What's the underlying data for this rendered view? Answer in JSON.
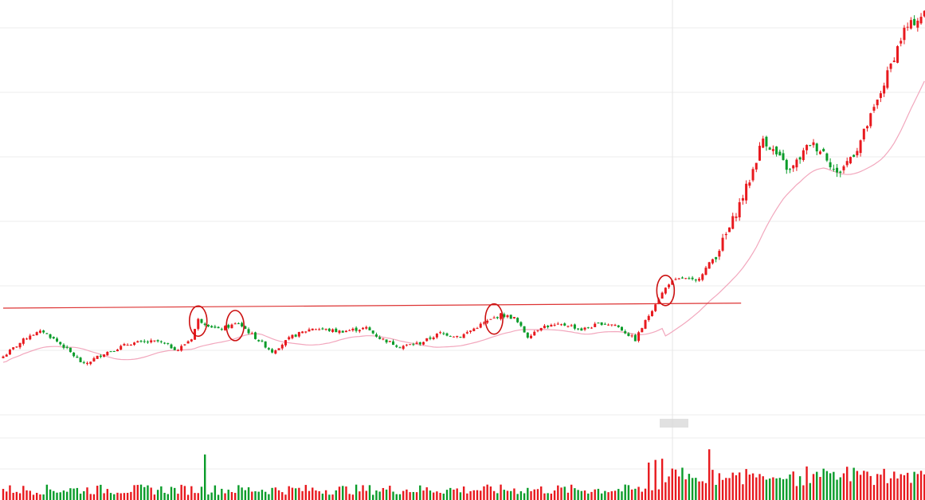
{
  "chart_data": {
    "type": "candlestick",
    "title": "",
    "xlabel": "",
    "ylabel": "",
    "grid": true,
    "legend": "none",
    "colors": {
      "up": "#e8191e",
      "down": "#0a9c2a",
      "moving_average": "#f2a7bd",
      "resistance_line": "#dd3333",
      "markers": "#cc1111",
      "grid": "#ececec",
      "crosshair": "#e4e4e4"
    },
    "price_range": [
      6.5,
      31.5
    ],
    "volume_range": [
      0,
      100
    ],
    "points": 0,
    "waypoints": [
      [
        0,
        10.1
      ],
      [
        8,
        11.4
      ],
      [
        12,
        11.6
      ],
      [
        18,
        10.7
      ],
      [
        24,
        9.6
      ],
      [
        30,
        10.3
      ],
      [
        38,
        10.9
      ],
      [
        46,
        11.0
      ],
      [
        52,
        10.5
      ],
      [
        56,
        11.2
      ],
      [
        58,
        12.3
      ],
      [
        64,
        11.7
      ],
      [
        70,
        12.1
      ],
      [
        74,
        11.4
      ],
      [
        80,
        10.4
      ],
      [
        86,
        11.3
      ],
      [
        92,
        11.8
      ],
      [
        100,
        11.6
      ],
      [
        108,
        11.8
      ],
      [
        112,
        11.2
      ],
      [
        118,
        10.7
      ],
      [
        124,
        10.9
      ],
      [
        130,
        11.5
      ],
      [
        136,
        11.3
      ],
      [
        142,
        12.0
      ],
      [
        148,
        12.6
      ],
      [
        152,
        12.4
      ],
      [
        156,
        11.3
      ],
      [
        160,
        11.9
      ],
      [
        168,
        12.0
      ],
      [
        172,
        11.7
      ],
      [
        178,
        12.1
      ],
      [
        182,
        12.0
      ],
      [
        188,
        11.1
      ],
      [
        194,
        13.3
      ],
      [
        198,
        14.5
      ],
      [
        202,
        14.8
      ],
      [
        206,
        14.6
      ],
      [
        212,
        16.2
      ],
      [
        216,
        17.8
      ],
      [
        222,
        20.7
      ],
      [
        226,
        23.2
      ],
      [
        230,
        22.2
      ],
      [
        234,
        21.2
      ],
      [
        240,
        22.9
      ],
      [
        244,
        22.4
      ],
      [
        248,
        21.0
      ],
      [
        254,
        22.6
      ],
      [
        260,
        25.4
      ],
      [
        264,
        27.6
      ],
      [
        268,
        29.7
      ],
      [
        274,
        30.7
      ]
    ],
    "resistance_line": {
      "from": [
        0,
        13.0
      ],
      "to": [
        210,
        13.3
      ]
    },
    "marked_points": [
      58,
      69,
      146,
      197
    ]
  }
}
